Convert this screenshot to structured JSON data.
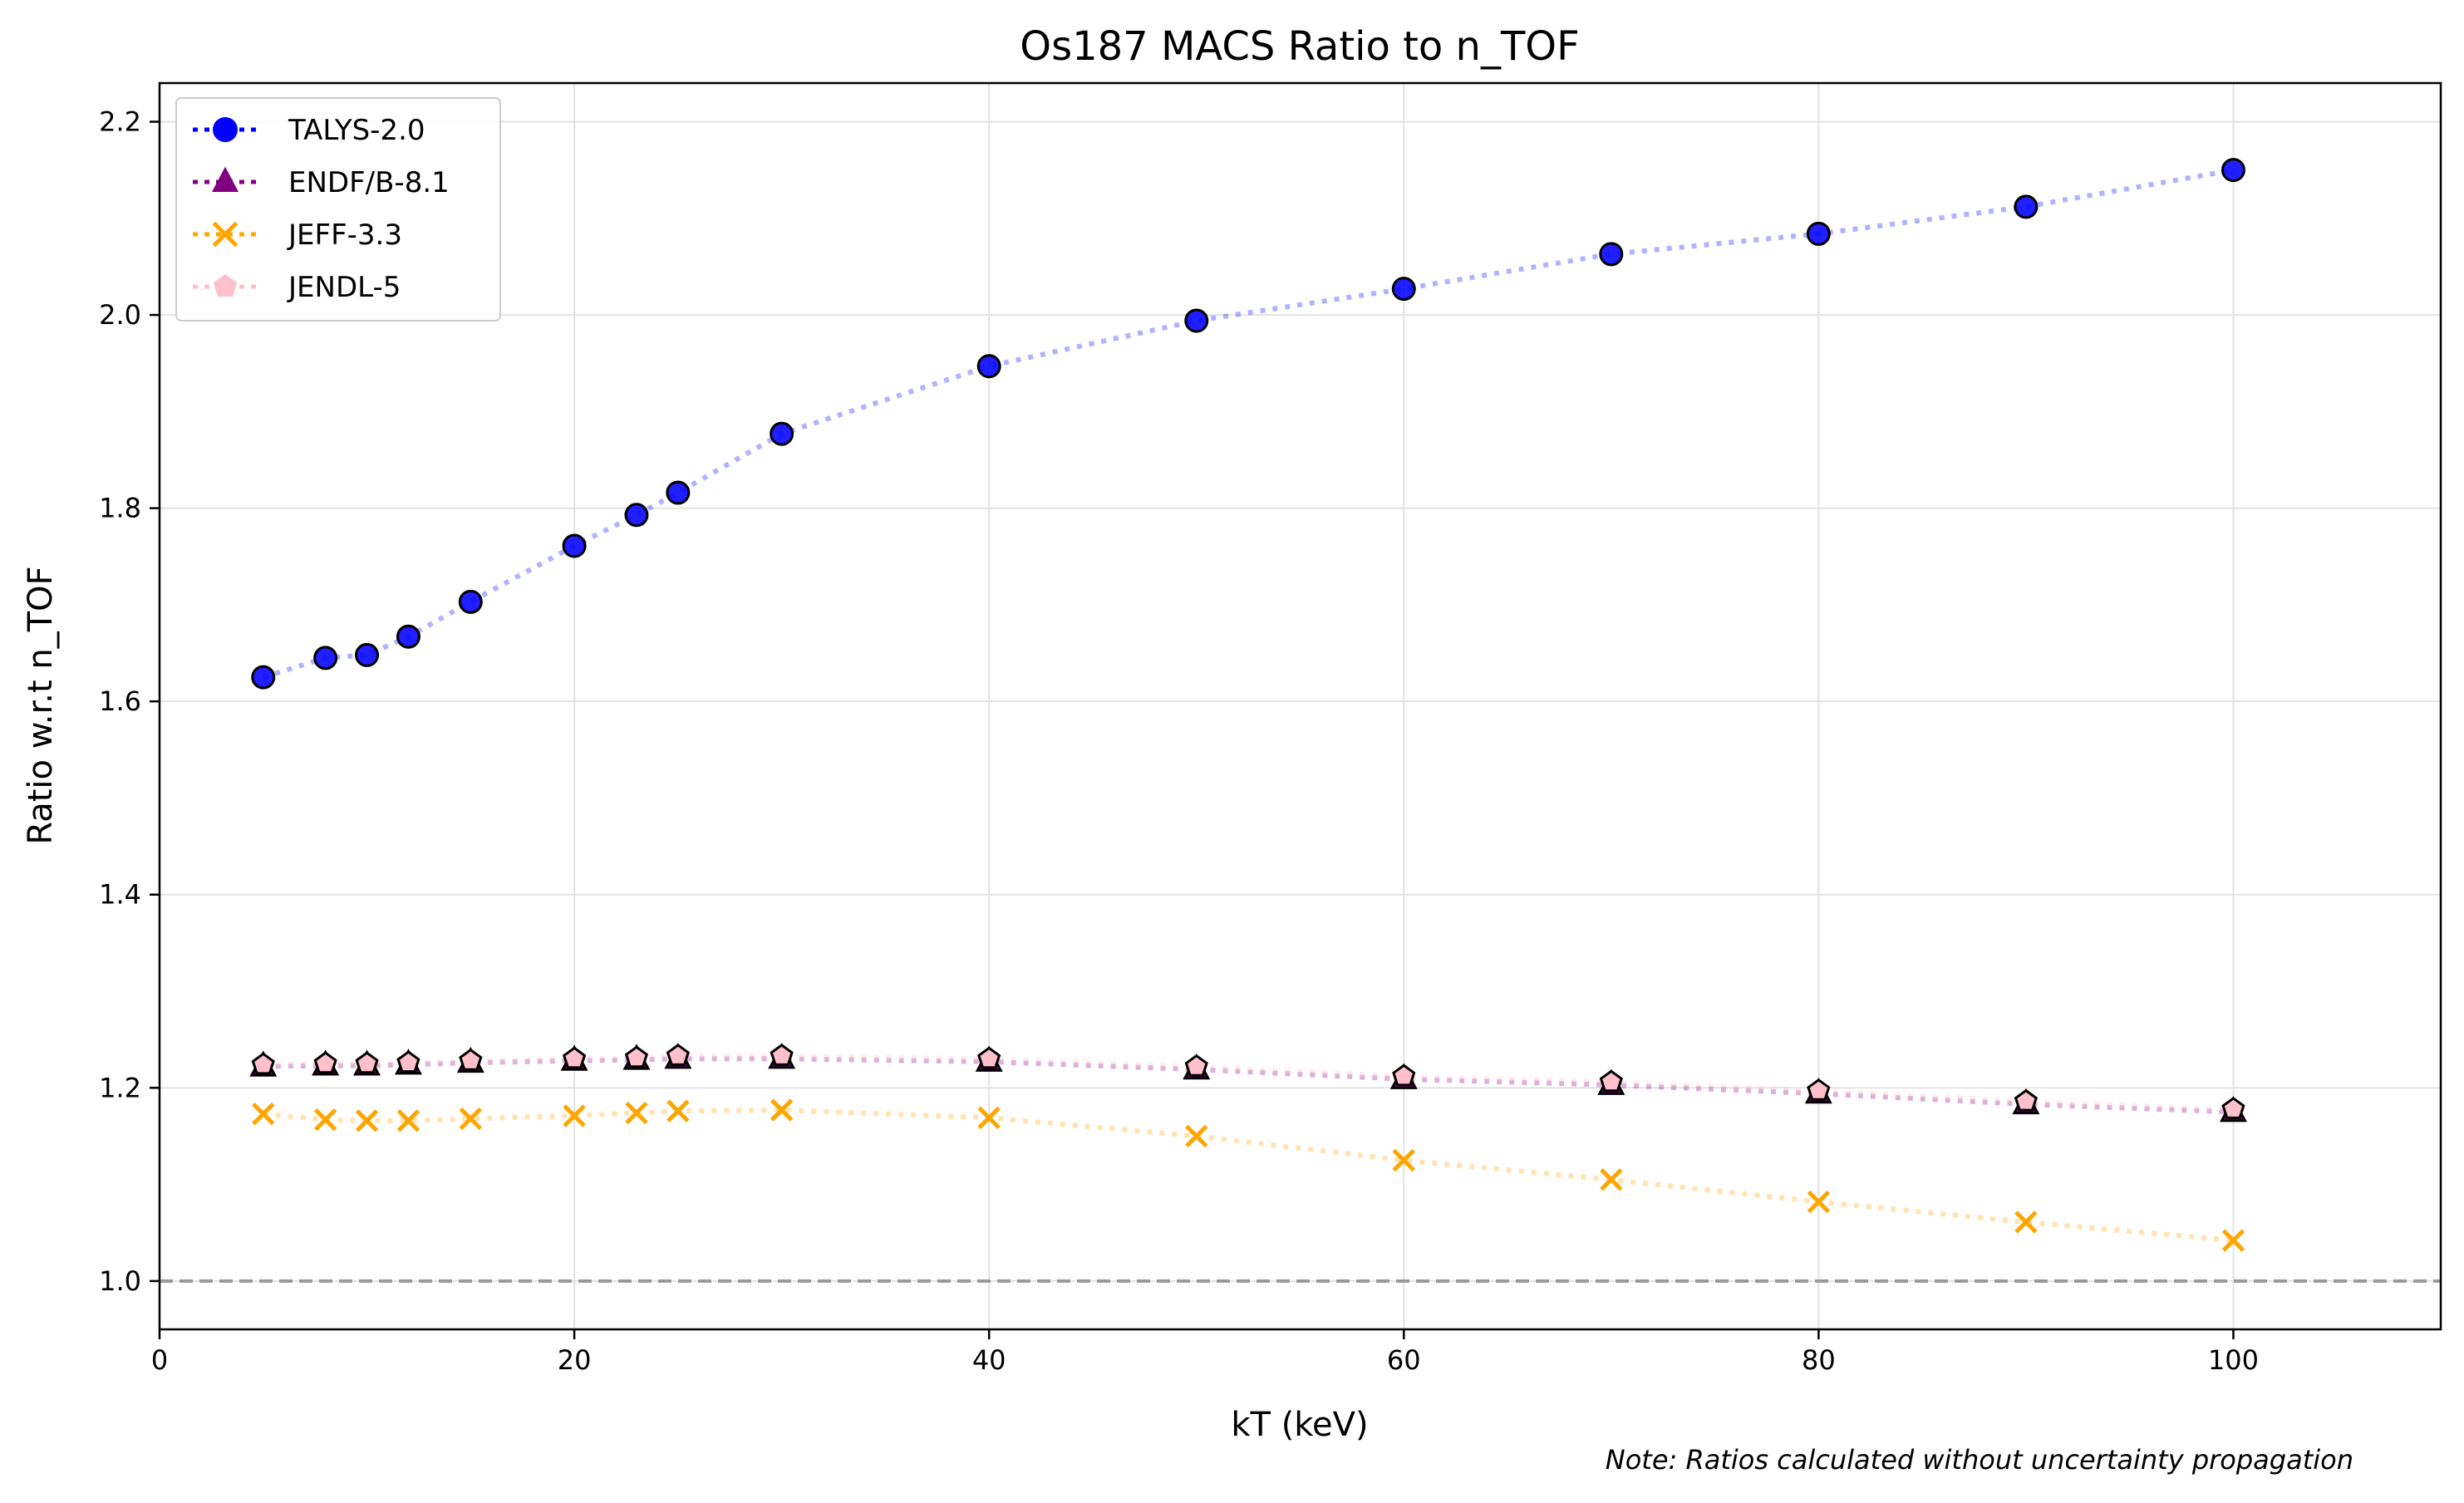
{
  "chart_data": {
    "type": "line",
    "title": "Os187 MACS Ratio to n_TOF",
    "xlabel": "kT (keV)",
    "ylabel": "Ratio w.r.t n_TOF",
    "xlim": [
      0,
      110
    ],
    "ylim": [
      0.95,
      2.24
    ],
    "xticks": [
      0,
      20,
      40,
      60,
      80,
      100
    ],
    "yticks": [
      1.0,
      1.2,
      1.4,
      1.6,
      1.8,
      2.0,
      2.2
    ],
    "grid": true,
    "legend_position": "top-left",
    "x": [
      5,
      8,
      10,
      12,
      15,
      20,
      23,
      25,
      30,
      40,
      50,
      60,
      70,
      80,
      90,
      100
    ],
    "reference_line": {
      "y": 1.0,
      "color": "#999999",
      "style": "dashed"
    },
    "series": [
      {
        "name": "TALYS-2.0",
        "marker": "circle",
        "color": "#0000ff",
        "values": [
          1.625,
          1.645,
          1.648,
          1.667,
          1.703,
          1.761,
          1.793,
          1.816,
          1.877,
          1.947,
          1.994,
          2.027,
          2.063,
          2.084,
          2.112,
          2.15
        ]
      },
      {
        "name": "ENDF/B-8.1",
        "marker": "triangle",
        "color": "#800080",
        "values": [
          1.222,
          1.223,
          1.223,
          1.224,
          1.226,
          1.228,
          1.229,
          1.23,
          1.23,
          1.227,
          1.219,
          1.209,
          1.203,
          1.194,
          1.183,
          1.175
        ]
      },
      {
        "name": "JEFF-3.3",
        "marker": "x",
        "color": "#ffa500",
        "values": [
          1.173,
          1.167,
          1.166,
          1.166,
          1.168,
          1.171,
          1.174,
          1.176,
          1.177,
          1.169,
          1.15,
          1.125,
          1.105,
          1.082,
          1.061,
          1.042
        ]
      },
      {
        "name": "JENDL-5",
        "marker": "pentagon",
        "color": "#ffc0cb",
        "values": [
          1.224,
          1.225,
          1.225,
          1.226,
          1.228,
          1.23,
          1.231,
          1.233,
          1.233,
          1.23,
          1.222,
          1.212,
          1.206,
          1.197,
          1.186,
          1.178
        ]
      }
    ],
    "annotation": "Note: Ratios calculated without uncertainty propagation"
  }
}
